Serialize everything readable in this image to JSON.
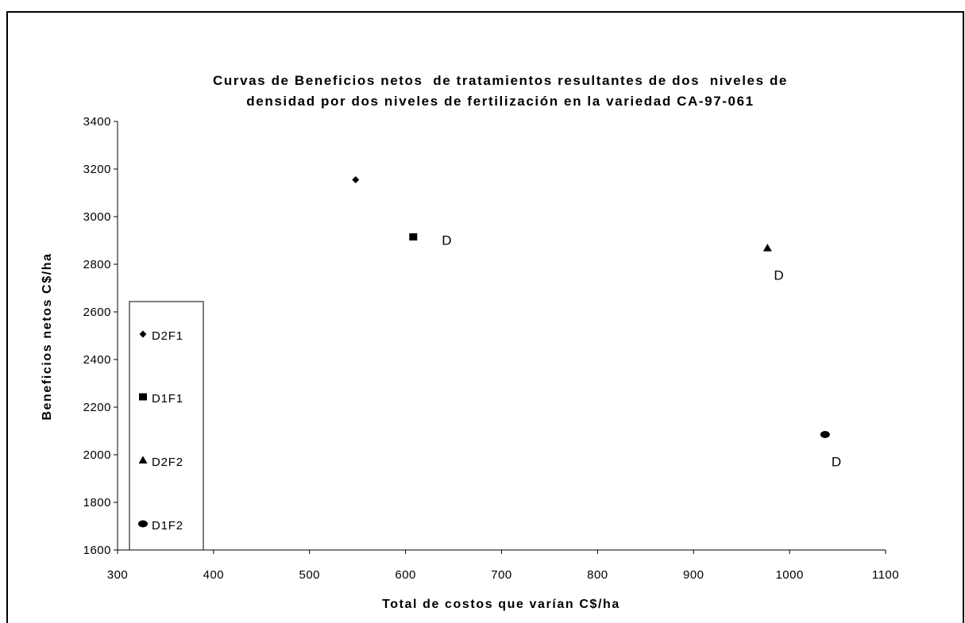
{
  "chart_data": {
    "type": "scatter",
    "title_line1": "Curvas de Beneficios netos  de tratamientos resultantes de dos  niveles de",
    "title_line2": "densidad por dos niveles de fertilización en la variedad CA-97-061",
    "xlabel": "Total de costos que varían C$/ha",
    "ylabel": "Beneficios netos C$/ha",
    "xlim": [
      300,
      1100
    ],
    "ylim": [
      1600,
      3400
    ],
    "xticks": [
      300,
      400,
      500,
      600,
      700,
      800,
      900,
      1000,
      1100
    ],
    "yticks": [
      1600,
      1800,
      2000,
      2200,
      2400,
      2600,
      2800,
      3000,
      3200,
      3400
    ],
    "grid": false,
    "legend_position": "bottom-left",
    "series": [
      {
        "name": "D2F1",
        "marker": "diamond",
        "x": [
          548
        ],
        "y": [
          3155
        ],
        "label": ""
      },
      {
        "name": "D1F1",
        "marker": "square",
        "x": [
          608
        ],
        "y": [
          2915
        ],
        "label": "D"
      },
      {
        "name": "D2F2",
        "marker": "triangle",
        "x": [
          977
        ],
        "y": [
          2868
        ],
        "label": "D"
      },
      {
        "name": "D1F2",
        "marker": "circle",
        "x": [
          1037
        ],
        "y": [
          2085
        ],
        "label": "D"
      }
    ]
  }
}
